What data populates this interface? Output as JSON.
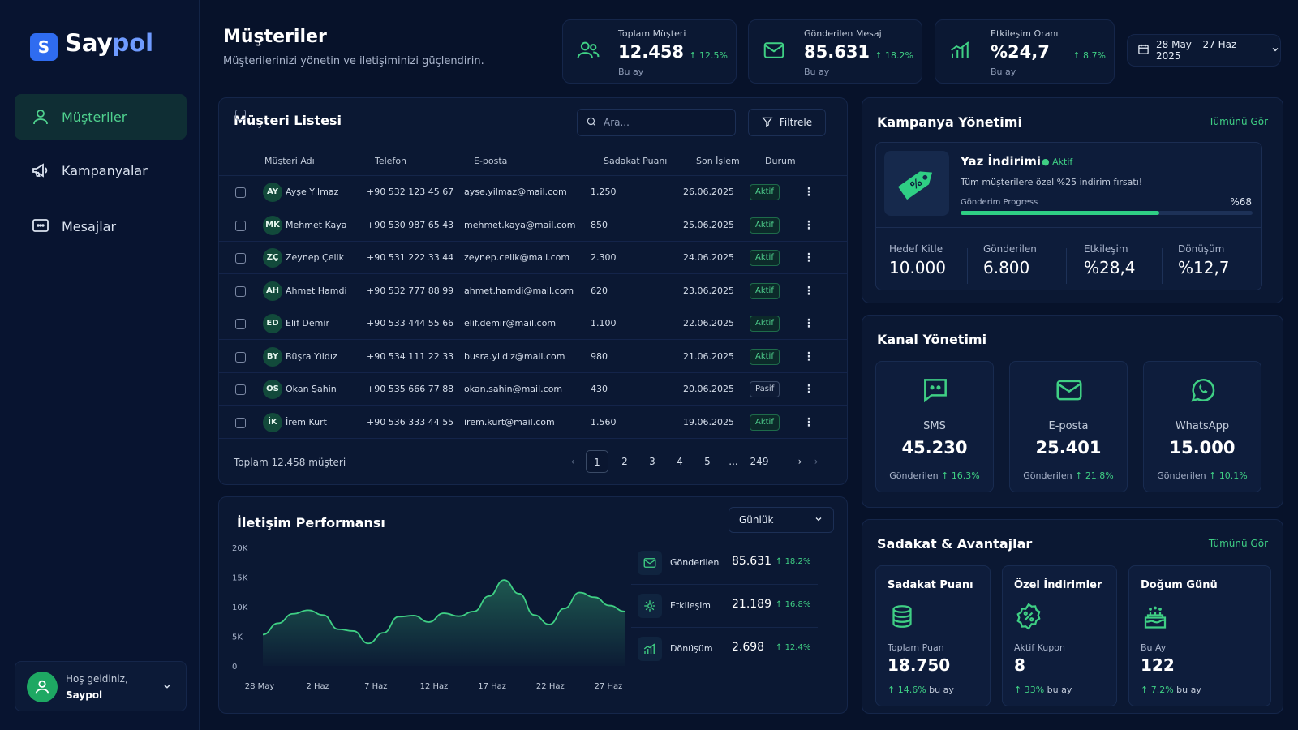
{
  "brand": {
    "logo_letter": "S",
    "name_a": "Say",
    "name_b": "pol"
  },
  "nav": [
    {
      "label": "Müşteriler",
      "icon": "user-icon",
      "active": true
    },
    {
      "label": "Kampanyalar",
      "icon": "megaphone-icon",
      "active": false
    },
    {
      "label": "Mesajlar",
      "icon": "message-icon",
      "active": false
    }
  ],
  "user": {
    "greeting": "Hoş geldiniz,",
    "name": "Saypol"
  },
  "header": {
    "title": "Müşteriler",
    "subtitle": "Müşterilerinizi yönetin ve iletişiminizi güçlendirin."
  },
  "stats": [
    {
      "label": "Toplam Müşteri",
      "value": "12.458",
      "change": "12.5%",
      "sub": "Bu ay",
      "icon": "users-icon"
    },
    {
      "label": "Gönderilen Mesaj",
      "value": "85.631",
      "change": "18.2%",
      "sub": "Bu ay",
      "icon": "mail-icon"
    },
    {
      "label": "Etkileşim Oranı",
      "value": "%24,7",
      "change": "8.7%",
      "sub": "Bu ay",
      "icon": "bar-chart-icon"
    }
  ],
  "date_range": "28 May – 27 Haz 2025",
  "customers": {
    "title": "Müşteri Listesi",
    "search_placeholder": "Ara...",
    "filter_label": "Filtrele",
    "columns": [
      "Müşteri Adı",
      "Telefon",
      "E-posta",
      "Sadakat Puanı",
      "Son İşlem",
      "Durum"
    ],
    "rows": [
      {
        "initials": "AY",
        "name": "Ayşe Yılmaz",
        "phone": "+90 532 123 45 67",
        "email": "ayse.yilmaz@mail.com",
        "points": "1.250",
        "last": "26.06.2025",
        "status": "Aktif"
      },
      {
        "initials": "MK",
        "name": "Mehmet Kaya",
        "phone": "+90 530 987 65 43",
        "email": "mehmet.kaya@mail.com",
        "points": "850",
        "last": "25.06.2025",
        "status": "Aktif"
      },
      {
        "initials": "ZÇ",
        "name": "Zeynep Çelik",
        "phone": "+90 531 222 33 44",
        "email": "zeynep.celik@mail.com",
        "points": "2.300",
        "last": "24.06.2025",
        "status": "Aktif"
      },
      {
        "initials": "AH",
        "name": "Ahmet Hamdi",
        "phone": "+90 532 777 88 99",
        "email": "ahmet.hamdi@mail.com",
        "points": "620",
        "last": "23.06.2025",
        "status": "Aktif"
      },
      {
        "initials": "ED",
        "name": "Elif Demir",
        "phone": "+90 533 444 55 66",
        "email": "elif.demir@mail.com",
        "points": "1.100",
        "last": "22.06.2025",
        "status": "Aktif"
      },
      {
        "initials": "BY",
        "name": "Büşra Yıldız",
        "phone": "+90 534 111 22 33",
        "email": "busra.yildiz@mail.com",
        "points": "980",
        "last": "21.06.2025",
        "status": "Aktif"
      },
      {
        "initials": "OS",
        "name": "Okan Şahin",
        "phone": "+90 535 666 77 88",
        "email": "okan.sahin@mail.com",
        "points": "430",
        "last": "20.06.2025",
        "status": "Pasif"
      },
      {
        "initials": "İK",
        "name": "İrem Kurt",
        "phone": "+90 536 333 44 55",
        "email": "irem.kurt@mail.com",
        "points": "1.560",
        "last": "19.06.2025",
        "status": "Aktif"
      }
    ],
    "total_label": "Toplam 12.458 müşteri",
    "pages": [
      "1",
      "2",
      "3",
      "4",
      "5",
      "...",
      "249"
    ],
    "current_page": "1"
  },
  "performance": {
    "title": "İletişim Performansı",
    "period": "Günlük",
    "stats": [
      {
        "label": "Gönderilen",
        "value": "85.631",
        "change": "18.2%",
        "icon": "mail-icon"
      },
      {
        "label": "Etkileşim",
        "value": "21.189",
        "change": "16.8%",
        "icon": "interaction-icon"
      },
      {
        "label": "Dönüşüm",
        "value": "2.698",
        "change": "12.4%",
        "icon": "bar-chart-icon"
      }
    ]
  },
  "chart_data": {
    "type": "area",
    "title": "",
    "xlabel": "",
    "ylabel": "",
    "x_ticks": [
      "28 May",
      "2 Haz",
      "7 Haz",
      "12 Haz",
      "17 Haz",
      "22 Haz",
      "27 Haz"
    ],
    "y_ticks": [
      "20K",
      "15K",
      "10K",
      "5K",
      "0"
    ],
    "ylim": [
      0,
      20000
    ],
    "series": [
      {
        "values": [
          5300,
          7200,
          8800,
          9400,
          8600,
          6200,
          5900,
          3800,
          5600,
          8300,
          8500,
          7400,
          8900,
          8400,
          9200,
          11800,
          14500,
          12200,
          8600,
          7000,
          9700,
          12400,
          11600,
          10200,
          9200
        ]
      }
    ],
    "grid": false,
    "color": "#3fcf84"
  },
  "campaign": {
    "title": "Kampanya Yönetimi",
    "view_all": "Tümünü Gör",
    "name": "Yaz İndirimi",
    "status": "Aktif",
    "desc": "Tüm müşterilere özel %25 indirim fırsatı!",
    "progress_label": "Gönderim Progress",
    "progress_text": "%68",
    "progress": 0.68,
    "metrics": [
      {
        "label": "Hedef Kitle",
        "value": "10.000"
      },
      {
        "label": "Gönderilen",
        "value": "6.800"
      },
      {
        "label": "Etkileşim",
        "value": "%28,4"
      },
      {
        "label": "Dönüşüm",
        "value": "%12,7"
      }
    ]
  },
  "channels": {
    "title": "Kanal Yönetimi",
    "items": [
      {
        "name": "SMS",
        "value": "45.230",
        "foot": "Gönderilen",
        "change": "16.3%",
        "icon": "sms-icon"
      },
      {
        "name": "E-posta",
        "value": "25.401",
        "foot": "Gönderilen",
        "change": "21.8%",
        "icon": "mail-icon"
      },
      {
        "name": "WhatsApp",
        "value": "15.000",
        "foot": "Gönderilen",
        "change": "10.1%",
        "icon": "whatsapp-icon"
      }
    ]
  },
  "loyalty": {
    "title": "Sadakat & Avantajlar",
    "view_all": "Tümünü Gör",
    "cards": [
      {
        "title": "Sadakat Puanı",
        "label": "Toplam Puan",
        "value": "18.750",
        "change": "14.6%",
        "suffix": "bu ay",
        "icon": "coins-icon"
      },
      {
        "title": "Özel İndirimler",
        "label": "Aktif Kupon",
        "value": "8",
        "change": "33%",
        "suffix": "bu ay",
        "icon": "percent-badge-icon"
      },
      {
        "title": "Doğum Günü",
        "label": "Bu Ay",
        "value": "122",
        "change": "7.2%",
        "suffix": "bu ay",
        "icon": "cake-icon"
      }
    ]
  }
}
